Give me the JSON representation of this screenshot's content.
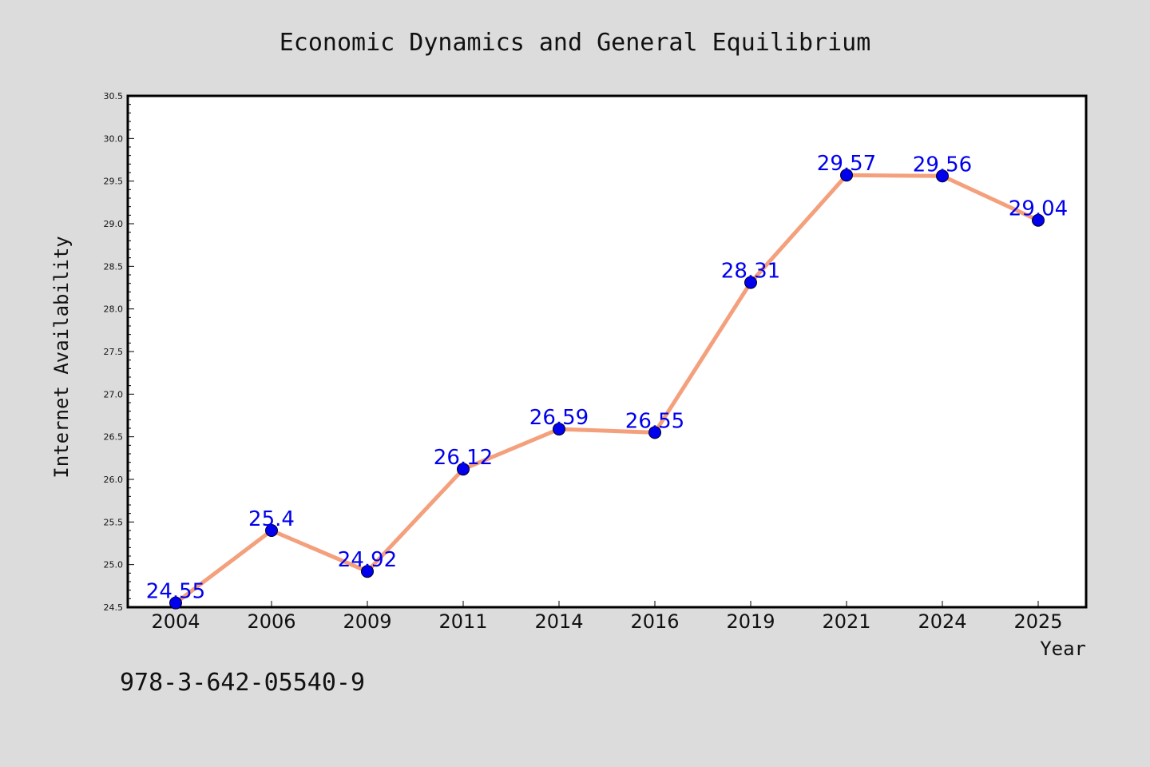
{
  "chart_data": {
    "type": "line",
    "title": "Economic Dynamics and General Equilibrium",
    "xlabel": "Year",
    "ylabel": "Internet Availability",
    "categories": [
      "2004",
      "2006",
      "2009",
      "2011",
      "2014",
      "2016",
      "2019",
      "2021",
      "2024",
      "2025"
    ],
    "series": [
      {
        "values": [
          24.55,
          25.4,
          24.92,
          26.12,
          26.59,
          26.55,
          28.31,
          29.57,
          29.56,
          29.04
        ],
        "labels": [
          "24.55",
          "25.4",
          "24.92",
          "26.12",
          "26.59",
          "26.55",
          "28.31",
          "29.57",
          "29.56",
          "29.04"
        ],
        "line_color": "#f4a07c",
        "marker_color": "#0000ee"
      }
    ],
    "ylim": [
      24.5,
      30.5
    ],
    "yticks": [
      "24.5",
      "25.0",
      "25.5",
      "26.0",
      "26.5",
      "27.0",
      "27.5",
      "28.0",
      "28.5",
      "29.0",
      "29.5",
      "30.0",
      "30.5"
    ],
    "grid": false,
    "legend": "none"
  },
  "annotation": {
    "isbn": "978-3-642-05540-9"
  },
  "colors": {
    "background": "#dcdcdc",
    "plot_background": "#ffffff",
    "line": "#f4a07c",
    "marker": "#0000ee",
    "data_label": "#0000ee"
  }
}
